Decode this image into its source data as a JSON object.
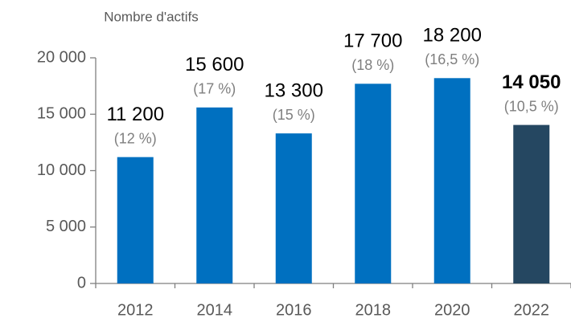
{
  "chart_data": {
    "type": "bar",
    "y_label": "Nombre d'actifs",
    "categories": [
      "2012",
      "2014",
      "2016",
      "2018",
      "2020",
      "2022"
    ],
    "values": [
      11200,
      15600,
      13300,
      17700,
      18200,
      14050
    ],
    "value_labels": [
      "11 200",
      "15 600",
      "13 300",
      "17 700",
      "18 200",
      "14 050"
    ],
    "share_labels": [
      "(12 %)",
      "(17 %)",
      "(15 %)",
      "(18 %)",
      "(16,5 %)",
      "(10,5 %)"
    ],
    "colors": [
      "#0070c0",
      "#0070c0",
      "#0070c0",
      "#0070c0",
      "#0070c0",
      "#254761"
    ],
    "highlight_index": 5,
    "ylim": [
      0,
      20000
    ],
    "yticks": [
      0,
      {
        "value": 5000,
        "label": "5 000"
      },
      {
        "value": 10000,
        "label": "10 000"
      },
      {
        "value": 15000,
        "label": "15 000"
      },
      {
        "value": 20000,
        "label": "20 000"
      }
    ],
    "grid": false
  }
}
